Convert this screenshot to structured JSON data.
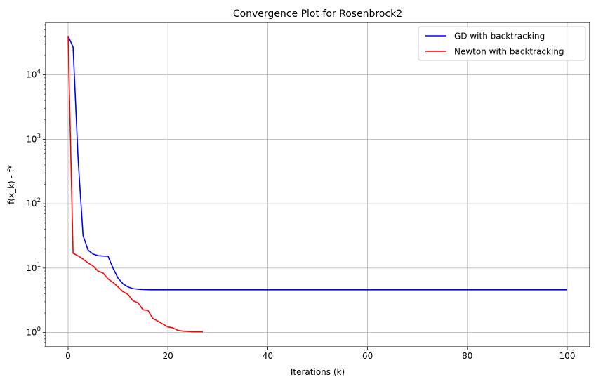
{
  "chart_data": {
    "type": "line",
    "title": "Convergence Plot for Rosenbrock2",
    "xlabel": "Iterations (k)",
    "ylabel": "f(x_k) - f*",
    "xlim": [
      -4.5,
      104.5
    ],
    "ylim": [
      0.6,
      65000
    ],
    "yscale": "log",
    "grid": true,
    "legend_position": "top-right",
    "x_ticks": [
      0,
      20,
      40,
      60,
      80,
      100
    ],
    "x_tick_labels": [
      "0",
      "20",
      "40",
      "60",
      "80",
      "100"
    ],
    "y_ticks": [
      1,
      10,
      100,
      1000,
      10000
    ],
    "y_tick_labels": [
      {
        "base": "10",
        "exp": "0"
      },
      {
        "base": "10",
        "exp": "1"
      },
      {
        "base": "10",
        "exp": "2"
      },
      {
        "base": "10",
        "exp": "3"
      },
      {
        "base": "10",
        "exp": "4"
      }
    ],
    "series": [
      {
        "name": "GD with backtracking",
        "color": "#0000ff",
        "x": [
          0,
          1,
          2,
          3,
          4,
          5,
          6,
          7,
          8,
          9,
          10,
          11,
          12,
          13,
          14,
          15,
          16,
          17,
          18,
          19,
          20,
          25,
          30,
          40,
          50,
          60,
          70,
          80,
          90,
          100
        ],
        "y": [
          40000,
          27000,
          500,
          32,
          19,
          16.5,
          15.6,
          15.4,
          15.3,
          10,
          7,
          5.7,
          5.1,
          4.8,
          4.7,
          4.65,
          4.62,
          4.6,
          4.6,
          4.6,
          4.6,
          4.6,
          4.6,
          4.6,
          4.6,
          4.6,
          4.6,
          4.6,
          4.6,
          4.6
        ]
      },
      {
        "name": "Newton with backtracking",
        "color": "#ff0000",
        "x": [
          0,
          1,
          2,
          3,
          4,
          5,
          6,
          7,
          8,
          9,
          10,
          11,
          12,
          13,
          14,
          15,
          16,
          17,
          18,
          19,
          20,
          21,
          22,
          23,
          24,
          25,
          26,
          27
        ],
        "y": [
          40000,
          17,
          15.5,
          13.8,
          12,
          10.8,
          9,
          8.4,
          6.8,
          6,
          5.1,
          4.3,
          3.9,
          3.1,
          2.9,
          2.25,
          2.2,
          1.65,
          1.5,
          1.35,
          1.22,
          1.18,
          1.08,
          1.05,
          1.04,
          1.03,
          1.03,
          1.03
        ]
      }
    ]
  }
}
